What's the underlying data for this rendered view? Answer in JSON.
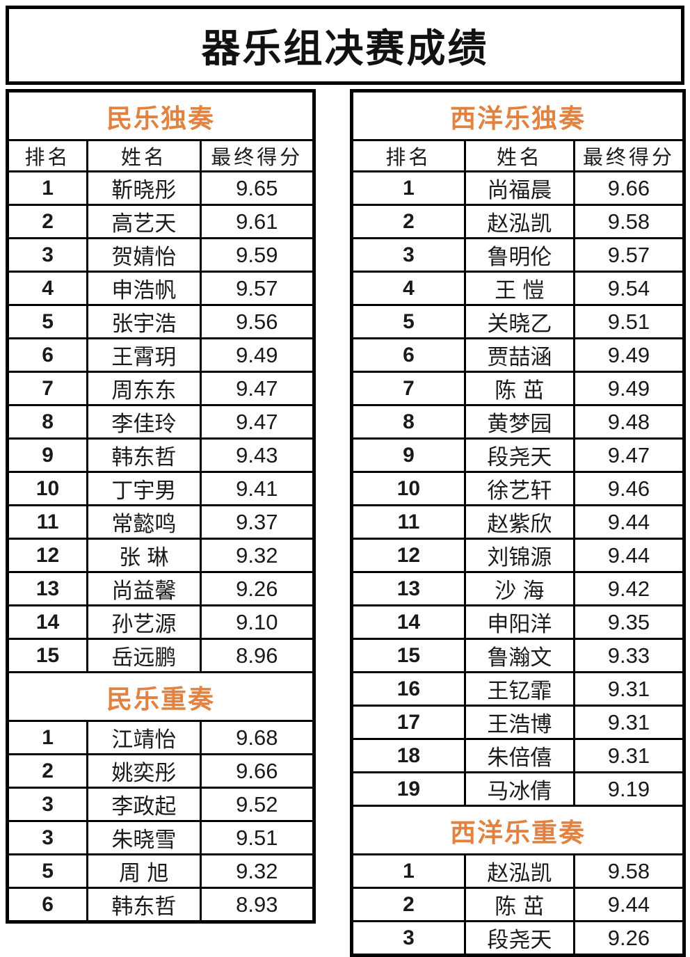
{
  "title": "器乐组决赛成绩",
  "colors": {
    "accent": "#E28240",
    "text": "#1A1A1A",
    "border": "#000000",
    "background": "#FFFFFF"
  },
  "column_headers": {
    "rank": "排名",
    "name": "姓名",
    "score": "最终得分"
  },
  "left_panel": {
    "sections": [
      {
        "title": "民乐独奏",
        "has_column_header": true,
        "rows": [
          {
            "rank": "1",
            "name": "靳晓彤",
            "score": "9.65"
          },
          {
            "rank": "2",
            "name": "高艺天",
            "score": "9.61"
          },
          {
            "rank": "3",
            "name": "贺婧怡",
            "score": "9.59"
          },
          {
            "rank": "4",
            "name": "申浩帆",
            "score": "9.57"
          },
          {
            "rank": "5",
            "name": "张宇浩",
            "score": "9.56"
          },
          {
            "rank": "6",
            "name": "王霄玥",
            "score": "9.49"
          },
          {
            "rank": "7",
            "name": "周东东",
            "score": "9.47"
          },
          {
            "rank": "8",
            "name": "李佳玲",
            "score": "9.47"
          },
          {
            "rank": "9",
            "name": "韩东哲",
            "score": "9.43"
          },
          {
            "rank": "10",
            "name": "丁宇男",
            "score": "9.41"
          },
          {
            "rank": "11",
            "name": "常懿鸣",
            "score": "9.37"
          },
          {
            "rank": "12",
            "name": "张琳",
            "score": "9.32"
          },
          {
            "rank": "13",
            "name": "尚益馨",
            "score": "9.26"
          },
          {
            "rank": "14",
            "name": "孙艺源",
            "score": "9.10"
          },
          {
            "rank": "15",
            "name": "岳远鹏",
            "score": "8.96"
          }
        ]
      },
      {
        "title": "民乐重奏",
        "has_column_header": false,
        "rows": [
          {
            "rank": "1",
            "name": "江靖怡",
            "score": "9.68"
          },
          {
            "rank": "2",
            "name": "姚奕彤",
            "score": "9.66"
          },
          {
            "rank": "3",
            "name": "李政起",
            "score": "9.52"
          },
          {
            "rank": "3",
            "name": "朱晓雪",
            "score": "9.51"
          },
          {
            "rank": "5",
            "name": "周旭",
            "score": "9.32"
          },
          {
            "rank": "6",
            "name": "韩东哲",
            "score": "8.93"
          }
        ]
      }
    ]
  },
  "right_panel": {
    "sections": [
      {
        "title": "西洋乐独奏",
        "has_column_header": true,
        "rows": [
          {
            "rank": "1",
            "name": "尚福晨",
            "score": "9.66"
          },
          {
            "rank": "2",
            "name": "赵泓凯",
            "score": "9.58"
          },
          {
            "rank": "3",
            "name": "鲁明伦",
            "score": "9.57"
          },
          {
            "rank": "4",
            "name": "王愷",
            "score": "9.54"
          },
          {
            "rank": "5",
            "name": "关晓乙",
            "score": "9.51"
          },
          {
            "rank": "6",
            "name": "贾喆涵",
            "score": "9.49"
          },
          {
            "rank": "7",
            "name": "陈茁",
            "score": "9.49"
          },
          {
            "rank": "8",
            "name": "黄梦园",
            "score": "9.48"
          },
          {
            "rank": "9",
            "name": "段尧天",
            "score": "9.47"
          },
          {
            "rank": "10",
            "name": "徐艺轩",
            "score": "9.46"
          },
          {
            "rank": "11",
            "name": "赵紫欣",
            "score": "9.44"
          },
          {
            "rank": "12",
            "name": "刘锦源",
            "score": "9.44"
          },
          {
            "rank": "13",
            "name": "沙海",
            "score": "9.42"
          },
          {
            "rank": "14",
            "name": "申阳洋",
            "score": "9.35"
          },
          {
            "rank": "15",
            "name": "鲁瀚文",
            "score": "9.33"
          },
          {
            "rank": "16",
            "name": "王钇霏",
            "score": "9.31"
          },
          {
            "rank": "17",
            "name": "王浩博",
            "score": "9.31"
          },
          {
            "rank": "18",
            "name": "朱倍僖",
            "score": "9.31"
          },
          {
            "rank": "19",
            "name": "马冰倩",
            "score": "9.19"
          }
        ]
      },
      {
        "title": "西洋乐重奏",
        "has_column_header": false,
        "rows": [
          {
            "rank": "1",
            "name": "赵泓凯",
            "score": "9.58"
          },
          {
            "rank": "2",
            "name": "陈茁",
            "score": "9.44"
          },
          {
            "rank": "3",
            "name": "段尧天",
            "score": "9.26"
          }
        ]
      }
    ]
  }
}
